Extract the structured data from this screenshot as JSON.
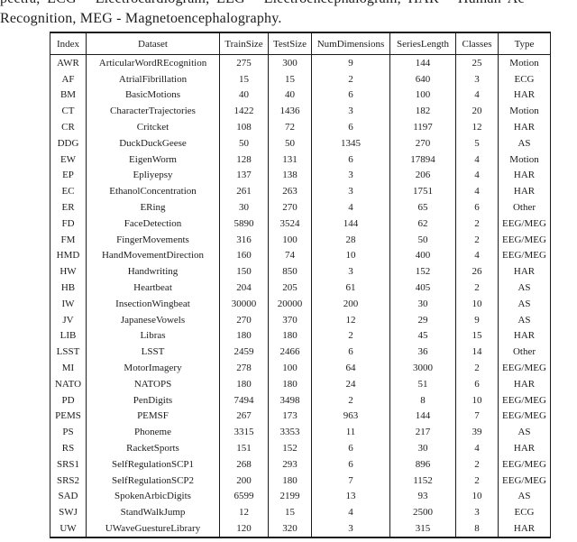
{
  "caption": {
    "line1": "pectra, ECG - Electrocardiogram, EEG - Electroencephalogram, HAR - Human Ac",
    "line2": "Recognition, MEG - Magnetoencephalography."
  },
  "table": {
    "columns": [
      "Index",
      "Dataset",
      "TrainSize",
      "TestSize",
      "NumDimensions",
      "SeriesLength",
      "Classes",
      "Type"
    ],
    "rows": [
      [
        "AWR",
        "ArticularWordREcognition",
        "275",
        "300",
        "9",
        "144",
        "25",
        "Motion"
      ],
      [
        "AF",
        "AtrialFibrillation",
        "15",
        "15",
        "2",
        "640",
        "3",
        "ECG"
      ],
      [
        "BM",
        "BasicMotions",
        "40",
        "40",
        "6",
        "100",
        "4",
        "HAR"
      ],
      [
        "CT",
        "CharacterTrajectories",
        "1422",
        "1436",
        "3",
        "182",
        "20",
        "Motion"
      ],
      [
        "CR",
        "Critcket",
        "108",
        "72",
        "6",
        "1197",
        "12",
        "HAR"
      ],
      [
        "DDG",
        "DuckDuckGeese",
        "50",
        "50",
        "1345",
        "270",
        "5",
        "AS"
      ],
      [
        "EW",
        "EigenWorm",
        "128",
        "131",
        "6",
        "17894",
        "4",
        "Motion"
      ],
      [
        "EP",
        "Epliyepsy",
        "137",
        "138",
        "3",
        "206",
        "4",
        "HAR"
      ],
      [
        "EC",
        "EthanolConcentration",
        "261",
        "263",
        "3",
        "1751",
        "4",
        "HAR"
      ],
      [
        "ER",
        "ERing",
        "30",
        "270",
        "4",
        "65",
        "6",
        "Other"
      ],
      [
        "FD",
        "FaceDetection",
        "5890",
        "3524",
        "144",
        "62",
        "2",
        "EEG/MEG"
      ],
      [
        "FM",
        "FingerMovements",
        "316",
        "100",
        "28",
        "50",
        "2",
        "EEG/MEG"
      ],
      [
        "HMD",
        "HandMovementDirection",
        "160",
        "74",
        "10",
        "400",
        "4",
        "EEG/MEG"
      ],
      [
        "HW",
        "Handwriting",
        "150",
        "850",
        "3",
        "152",
        "26",
        "HAR"
      ],
      [
        "HB",
        "Heartbeat",
        "204",
        "205",
        "61",
        "405",
        "2",
        "AS"
      ],
      [
        "IW",
        "InsectionWingbeat",
        "30000",
        "20000",
        "200",
        "30",
        "10",
        "AS"
      ],
      [
        "JV",
        "JapaneseVowels",
        "270",
        "370",
        "12",
        "29",
        "9",
        "AS"
      ],
      [
        "LIB",
        "Libras",
        "180",
        "180",
        "2",
        "45",
        "15",
        "HAR"
      ],
      [
        "LSST",
        "LSST",
        "2459",
        "2466",
        "6",
        "36",
        "14",
        "Other"
      ],
      [
        "MI",
        "MotorImagery",
        "278",
        "100",
        "64",
        "3000",
        "2",
        "EEG/MEG"
      ],
      [
        "NATO",
        "NATOPS",
        "180",
        "180",
        "24",
        "51",
        "6",
        "HAR"
      ],
      [
        "PD",
        "PenDigits",
        "7494",
        "3498",
        "2",
        "8",
        "10",
        "EEG/MEG"
      ],
      [
        "PEMS",
        "PEMSF",
        "267",
        "173",
        "963",
        "144",
        "7",
        "EEG/MEG"
      ],
      [
        "PS",
        "Phoneme",
        "3315",
        "3353",
        "11",
        "217",
        "39",
        "AS"
      ],
      [
        "RS",
        "RacketSports",
        "151",
        "152",
        "6",
        "30",
        "4",
        "HAR"
      ],
      [
        "SRS1",
        "SelfRegulationSCP1",
        "268",
        "293",
        "6",
        "896",
        "2",
        "EEG/MEG"
      ],
      [
        "SRS2",
        "SelfRegulationSCP2",
        "200",
        "180",
        "7",
        "1152",
        "2",
        "EEG/MEG"
      ],
      [
        "SAD",
        "SpokenArbicDigits",
        "6599",
        "2199",
        "13",
        "93",
        "10",
        "AS"
      ],
      [
        "SWJ",
        "StandWalkJump",
        "12",
        "15",
        "4",
        "2500",
        "3",
        "ECG"
      ],
      [
        "UW",
        "UWaveGuestureLibrary",
        "120",
        "320",
        "3",
        "315",
        "8",
        "HAR"
      ]
    ]
  }
}
